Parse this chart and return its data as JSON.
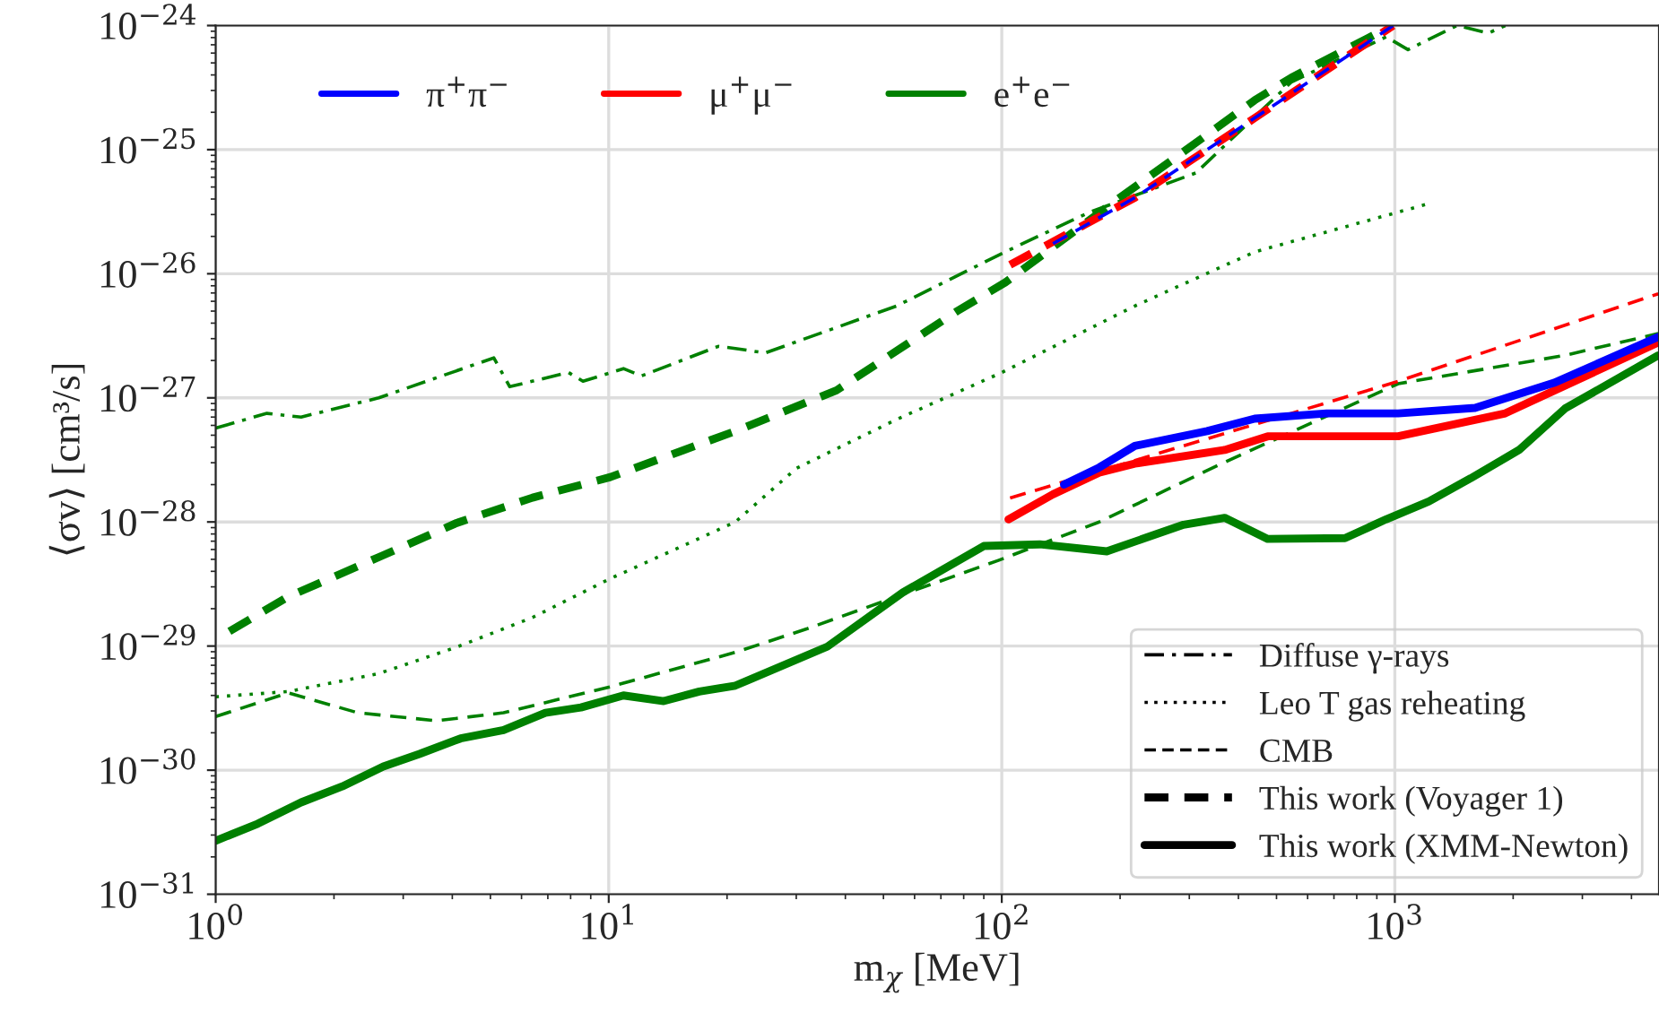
{
  "chart_data": {
    "type": "line",
    "xlabel": "m$_{χ}$ [MeV]",
    "ylabel": "⟨σv⟩ [cm³/s]",
    "log": "xy",
    "grid": true,
    "legend": "top left",
    "xlim": [
      1,
      4700
    ],
    "ylim": [
      1e-31,
      1e-24
    ],
    "xticks": [
      {
        "value": 1,
        "label": "10$^{0}$"
      },
      {
        "value": 10,
        "label": "10$^{1}$"
      },
      {
        "value": 100,
        "label": "10$^{2}$"
      },
      {
        "value": 1000,
        "label": "10$^{3}$"
      }
    ],
    "yticks": [
      {
        "value": 1e-31,
        "label": "10$^{−31}$"
      },
      {
        "value": 1e-30,
        "label": "10$^{−30}$"
      },
      {
        "value": 1e-29,
        "label": "10$^{−29}$"
      },
      {
        "value": 1e-28,
        "label": "10$^{−28}$"
      },
      {
        "value": 1e-27,
        "label": "10$^{−27}$"
      },
      {
        "value": 1e-26,
        "label": "10$^{−26}$"
      },
      {
        "value": 1e-25,
        "label": "10$^{−25}$"
      },
      {
        "value": 1e-24,
        "label": "10$^{−24}$"
      }
    ],
    "annotations": [
      "Diffuse γ-rays",
      "Leo T gas reheating",
      "CMB",
      "This work (Voyager 1)",
      "This work (XMM-Newton)"
    ],
    "series": [
      {
        "name": "π$^{+}$π$^{−}$",
        "color": "#0000ff",
        "line_style": "solid",
        "x": [
          144,
          177,
          218,
          333,
          440,
          671,
          1020,
          1600,
          2540,
          4680
        ],
        "values": [
          2e-28,
          2.75e-28,
          4.1e-28,
          5.4e-28,
          6.8e-28,
          7.5e-28,
          7.5e-28,
          8.3e-28,
          1.32e-27,
          3.1e-27
        ]
      },
      {
        "name": "μ$^{+}$μ$^{−}$",
        "color": "#ff0000",
        "line_style": "solid",
        "x": [
          104,
          135,
          177,
          218,
          369,
          475,
          1020,
          1910,
          4680
        ],
        "values": [
          1.05e-28,
          1.67e-28,
          2.5e-28,
          2.95e-28,
          3.8e-28,
          4.9e-28,
          4.9e-28,
          7.5e-28,
          2.8e-27
        ]
      },
      {
        "name": "e$^{+}$e$^{−}$",
        "color": "#008000",
        "line_style": "solid",
        "x": [
          1,
          1.28,
          1.65,
          2.1,
          2.67,
          3.3,
          4.2,
          5.4,
          6.9,
          8.5,
          10.9,
          13.8,
          17,
          21,
          36,
          56,
          90,
          125,
          185,
          290,
          369,
          475,
          747,
          950,
          1220,
          1560,
          2070,
          2710,
          4680
        ],
        "values": [
          2.7e-31,
          3.7e-31,
          5.5e-31,
          7.4e-31,
          1.07e-30,
          1.35e-30,
          1.8e-30,
          2.1e-30,
          2.9e-30,
          3.2e-30,
          4e-30,
          3.6e-30,
          4.3e-30,
          4.8e-30,
          9.9e-30,
          2.7e-29,
          6.4e-29,
          6.6e-29,
          5.8e-29,
          9.5e-29,
          1.08e-28,
          7.3e-29,
          7.4e-29,
          1.05e-28,
          1.46e-28,
          2.25e-28,
          3.8e-28,
          8.2e-28,
          2.2e-27
        ]
      },
      {
        "color": "#008000",
        "line_style": "dashdot",
        "x": [
          1,
          1.35,
          1.65,
          2.6,
          5.1,
          5.6,
          7.9,
          8.6,
          10.9,
          12.1,
          19,
          21,
          25,
          54,
          102,
          166,
          312,
          545,
          950,
          1080,
          1440,
          1730,
          1910
        ],
        "values": [
          5.7e-28,
          7.5e-28,
          7e-28,
          1e-27,
          2.1e-27,
          1.23e-27,
          1.6e-27,
          1.36e-27,
          1.72e-27,
          1.5e-27,
          2.6e-27,
          2.5e-27,
          2.3e-27,
          5.5e-27,
          1.5e-26,
          3.1e-26,
          6.5e-26,
          3.5e-25,
          8.1e-25,
          6.4e-25,
          1e-24,
          8.7e-25,
          1e-24
        ]
      },
      {
        "color": "#008000",
        "line_style": "dotted",
        "x": [
          1,
          1.53,
          2.6,
          4.1,
          6.4,
          10.1,
          14.9,
          21,
          30,
          54,
          100,
          218,
          440,
          1230
        ],
        "values": [
          3.9e-30,
          4.3e-30,
          6e-30,
          9.8e-30,
          1.7e-29,
          3.5e-29,
          6.1e-29,
          1e-28,
          2.7e-28,
          6.7e-28,
          1.6e-27,
          5.5e-27,
          1.5e-26,
          3.7e-26
        ]
      },
      {
        "color": "#008000",
        "line_style": "dashed",
        "x": [
          1,
          1.53,
          2.3,
          3.65,
          5.4,
          10.1,
          21,
          32,
          54,
          98,
          177,
          358,
          1020,
          2710,
          4680
        ],
        "values": [
          2.7e-30,
          4.2e-30,
          2.9e-30,
          2.5e-30,
          2.9e-30,
          4.7e-30,
          8.9e-30,
          1.38e-29,
          2.5e-29,
          4.9e-29,
          1e-28,
          2.9e-28,
          1.3e-27,
          2.2e-27,
          3.3e-27
        ]
      },
      {
        "color": "#ff0000",
        "line_style": "dashed",
        "x": [
          105,
          1020,
          4680
        ],
        "values": [
          1.56e-28,
          1.36e-27,
          6.9e-27
        ]
      },
      {
        "color": "#008000",
        "line_style": "dashed",
        "x": [
          1,
          1.53,
          2.6,
          4.1,
          6.4,
          10.1,
          21,
          38,
          77,
          102,
          191,
          440,
          545,
          985
        ],
        "values": [
          1.13e-29,
          2.5e-29,
          5.2e-29,
          9.8e-29,
          1.57e-28,
          2.3e-28,
          5.4e-28,
          1.15e-27,
          5e-27,
          8.5e-27,
          3.7e-26,
          2.5e-25,
          3.8e-25,
          1e-24
        ]
      },
      {
        "color": "#ff0000",
        "line_style": "dashed",
        "x": [
          105,
          218,
          440,
          990
        ],
        "values": [
          1.18e-26,
          4.1e-26,
          1.8e-25,
          1e-24
        ]
      },
      {
        "color": "#0000ff",
        "line_style": "dashed",
        "x": [
          135,
          218,
          440,
          990
        ],
        "values": [
          1.75e-26,
          4.1e-26,
          1.8e-25,
          1e-24
        ]
      }
    ]
  }
}
